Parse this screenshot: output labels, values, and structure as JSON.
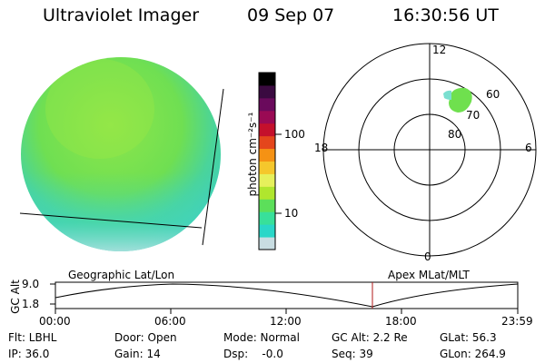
{
  "header": {
    "instrument": "Ultraviolet Imager",
    "date": "09 Sep 07",
    "time": "16:30:56 UT"
  },
  "colorbar": {
    "unit_label": "photon cm⁻²s⁻¹",
    "ticks": [
      "100",
      "10"
    ],
    "scale": "log",
    "colors": [
      "#c8dde2",
      "#2ad7c8",
      "#38e09a",
      "#5cdf5a",
      "#b0e62e",
      "#e6f05c",
      "#f5c72c",
      "#f59214",
      "#e4461c",
      "#c4102c",
      "#9a0a54",
      "#6a0a5c",
      "#3a0a40",
      "#000000"
    ]
  },
  "globe": {
    "fill_color": "#7ce24a",
    "lower_fill_color": "#3fd9b5",
    "edge_color": "#d9e6ee"
  },
  "polar_plot": {
    "top_label": "12",
    "bottom_label": "0",
    "left_label": "18",
    "right_label": "6",
    "ring_labels": [
      "60",
      "70",
      "80"
    ],
    "auroral_patch_color": "#6fe04e"
  },
  "timeline": {
    "left_title": "Geographic Lat/Lon",
    "right_title": "Apex  MLat/MLT",
    "y_axis_label": "GC Alt",
    "y_ticks": [
      "9.0",
      "1.8"
    ],
    "x_ticks": [
      "00:00",
      "06:00",
      "12:00",
      "18:00",
      "23:59"
    ],
    "marker_time": "16:31",
    "marker_color": "#b01818"
  },
  "info": {
    "row1": {
      "flt": "Flt: LBHL",
      "door": "Door: Open",
      "mode": "Mode: Normal",
      "gcalt": "GC Alt: 2.2 Re",
      "glat": "GLat:  56.3"
    },
    "row2": {
      "ip": "IP: 36.0",
      "gain": "Gain: 14",
      "dsp": "Dsp:    -0.0",
      "seq": "Seq: 39",
      "glon": "GLon: 264.9"
    }
  }
}
